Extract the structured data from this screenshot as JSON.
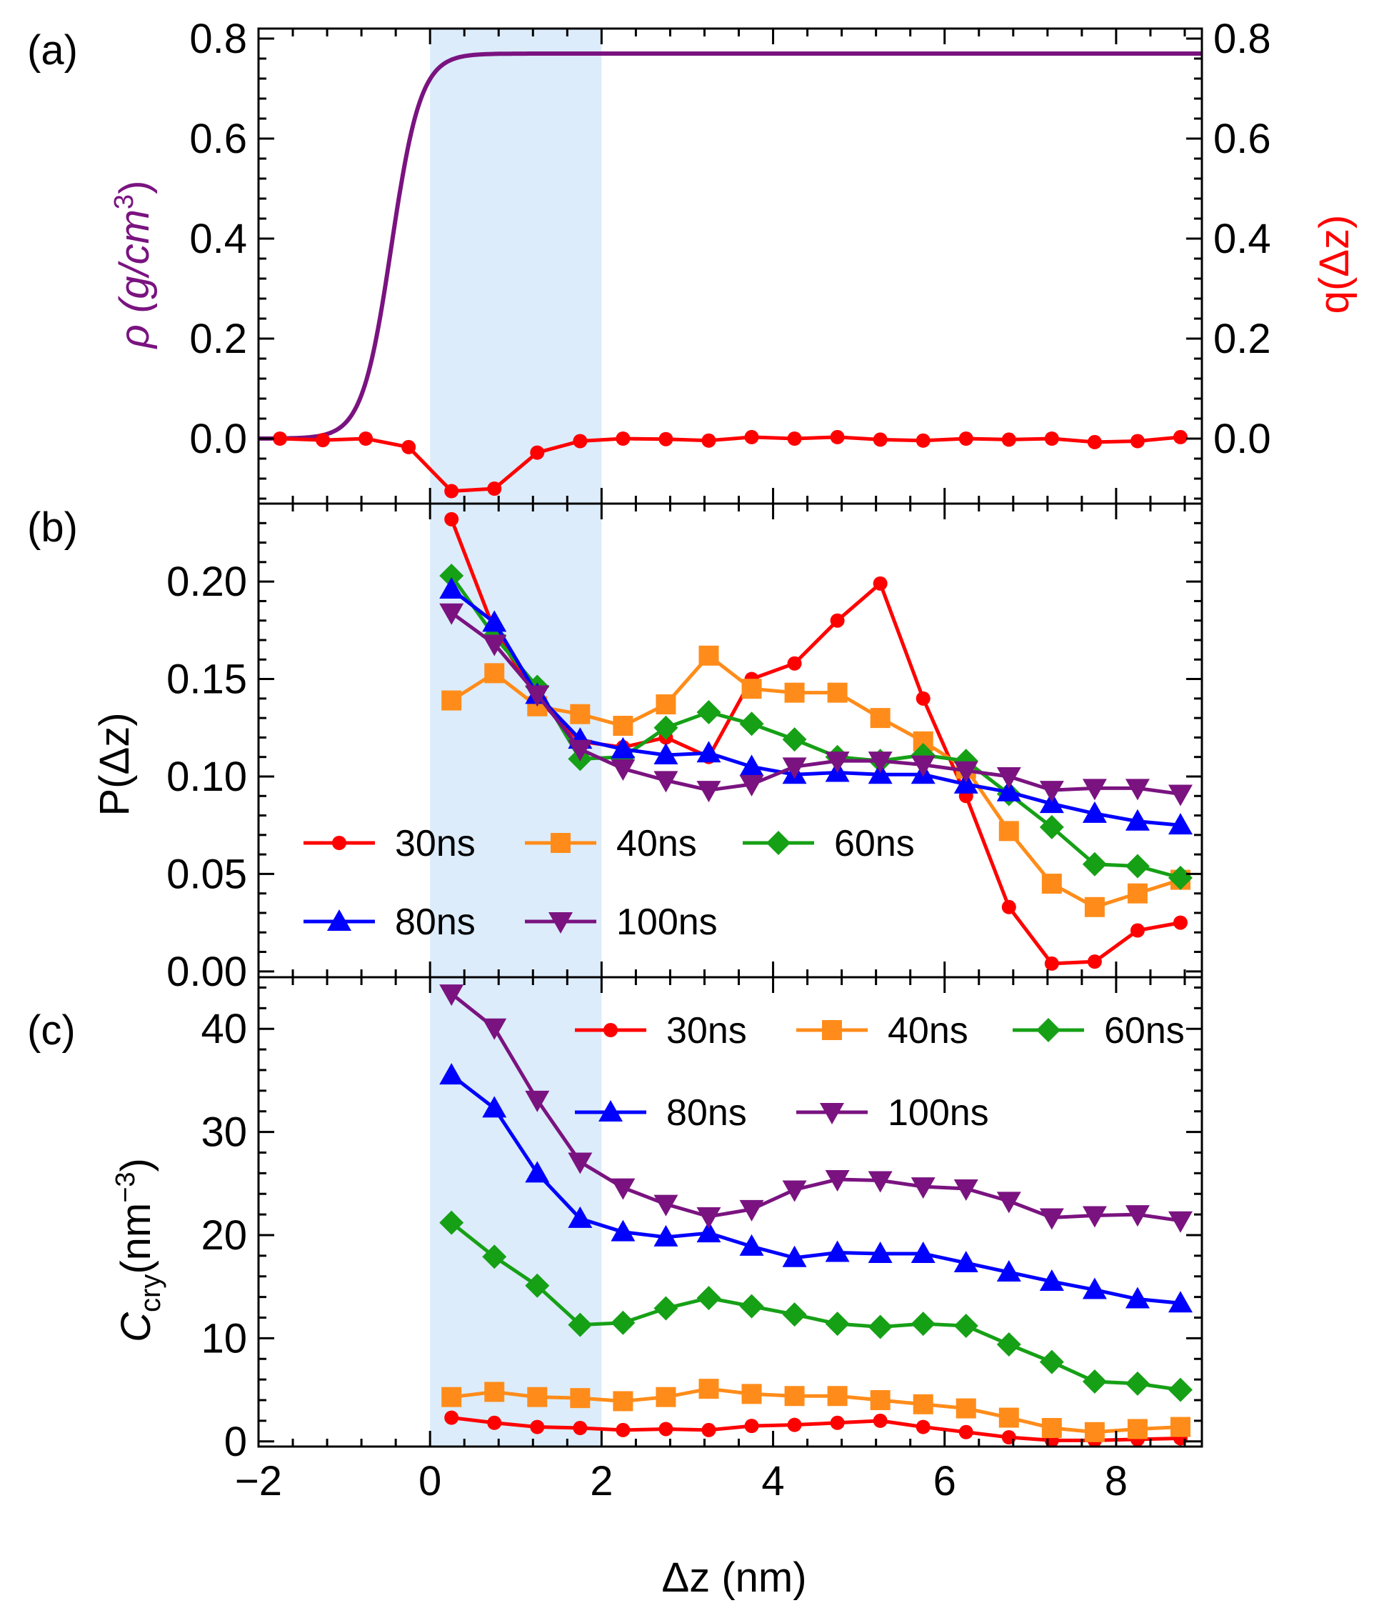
{
  "chart_data": [
    {
      "panel": "a",
      "type": "line",
      "label": "(a)",
      "ylabel_left": "ρ (g/cm",
      "ylabel_left_sup": "3",
      "ylabel_left_close": ")",
      "ylabel_right": "q(Δz)",
      "xlim": [
        -2,
        9
      ],
      "ylim": [
        -0.13,
        0.82
      ],
      "yticks": [
        "0.0",
        "0.2",
        "0.4",
        "0.6",
        "0.8"
      ],
      "yticks_right": [
        "0.0",
        "0.2",
        "0.4",
        "0.6",
        "0.8"
      ],
      "shaded_region_x": [
        0,
        2
      ],
      "series": [
        {
          "name": "density",
          "color": "#7a1380",
          "curve": "sigmoid",
          "x_center": -0.45,
          "width": 0.17,
          "y_max": 0.77
        },
        {
          "name": "q",
          "color": "#ff0000",
          "marker": "circle",
          "x": [
            -1.75,
            -1.25,
            -0.75,
            -0.25,
            0.25,
            0.75,
            1.25,
            1.75,
            2.25,
            2.75,
            3.25,
            3.75,
            4.25,
            4.75,
            5.25,
            5.75,
            6.25,
            6.75,
            7.25,
            7.75,
            8.25,
            8.75
          ],
          "values": [
            0.0,
            -0.003,
            0.0,
            -0.017,
            -0.105,
            -0.1,
            -0.028,
            -0.005,
            0.0,
            -0.001,
            -0.004,
            0.003,
            0.0,
            0.003,
            -0.002,
            -0.004,
            0.0,
            -0.002,
            0.0,
            -0.007,
            -0.005,
            0.003
          ]
        }
      ]
    },
    {
      "panel": "b",
      "type": "line",
      "label": "(b)",
      "ylabel": "P(Δz)",
      "xlim": [
        -2,
        9
      ],
      "ylim": [
        -0.003,
        0.24
      ],
      "yticks": [
        "0.00",
        "0.05",
        "0.10",
        "0.15",
        "0.20"
      ],
      "shaded_region_x": [
        0,
        2
      ],
      "x": [
        0.25,
        0.75,
        1.25,
        1.75,
        2.25,
        2.75,
        3.25,
        3.75,
        4.25,
        4.75,
        5.25,
        5.75,
        6.25,
        6.75,
        7.25,
        7.75,
        8.25,
        8.75
      ],
      "series": [
        {
          "name": "30ns",
          "color": "#ff0000",
          "marker": "circle",
          "values": [
            0.232,
            0.175,
            0.14,
            0.118,
            0.115,
            0.12,
            0.11,
            0.15,
            0.158,
            0.18,
            0.199,
            0.14,
            0.09,
            0.033,
            0.004,
            0.005,
            0.021,
            0.025
          ]
        },
        {
          "name": "40ns",
          "color": "#ff8c1a",
          "marker": "square",
          "values": [
            0.139,
            0.153,
            0.136,
            0.132,
            0.126,
            0.137,
            0.162,
            0.145,
            0.143,
            0.143,
            0.13,
            0.118,
            0.104,
            0.072,
            0.045,
            0.033,
            0.04,
            0.047
          ]
        },
        {
          "name": "60ns",
          "color": "#16a016",
          "marker": "diamond",
          "values": [
            0.203,
            0.172,
            0.146,
            0.109,
            0.11,
            0.125,
            0.133,
            0.127,
            0.119,
            0.11,
            0.108,
            0.111,
            0.108,
            0.091,
            0.074,
            0.055,
            0.054,
            0.048
          ]
        },
        {
          "name": "80ns",
          "color": "#0000ff",
          "marker": "triangle-up",
          "values": [
            0.196,
            0.179,
            0.142,
            0.119,
            0.114,
            0.111,
            0.112,
            0.105,
            0.101,
            0.102,
            0.101,
            0.101,
            0.096,
            0.092,
            0.086,
            0.081,
            0.077,
            0.075
          ]
        },
        {
          "name": "100ns",
          "color": "#7a1380",
          "marker": "triangle-down",
          "values": [
            0.184,
            0.168,
            0.142,
            0.114,
            0.104,
            0.098,
            0.093,
            0.096,
            0.105,
            0.108,
            0.108,
            0.106,
            0.103,
            0.1,
            0.093,
            0.094,
            0.094,
            0.091
          ]
        }
      ],
      "legend": [
        "30ns",
        "40ns",
        "60ns",
        "80ns",
        "100ns"
      ],
      "legend_position": "bottom-left"
    },
    {
      "panel": "c",
      "type": "line",
      "label": "(c)",
      "ylabel_main": "C",
      "ylabel_sub": "cry",
      "ylabel_unit": "(nm",
      "ylabel_sup": "−3",
      "ylabel_close": ")",
      "xlabel": "Δz (nm)",
      "xlim": [
        -2,
        9
      ],
      "ylim": [
        -0.5,
        45
      ],
      "yticks": [
        "0",
        "10",
        "20",
        "30",
        "40"
      ],
      "xticks": [
        "−2",
        "0",
        "2",
        "4",
        "6",
        "8"
      ],
      "shaded_region_x": [
        0,
        2
      ],
      "x": [
        0.25,
        0.75,
        1.25,
        1.75,
        2.25,
        2.75,
        3.25,
        3.75,
        4.25,
        4.75,
        5.25,
        5.75,
        6.25,
        6.75,
        7.25,
        7.75,
        8.25,
        8.75
      ],
      "series": [
        {
          "name": "30ns",
          "color": "#ff0000",
          "marker": "circle",
          "values": [
            2.3,
            1.8,
            1.4,
            1.3,
            1.1,
            1.2,
            1.1,
            1.5,
            1.6,
            1.8,
            2.0,
            1.4,
            0.9,
            0.4,
            0.1,
            0.1,
            0.2,
            0.3
          ]
        },
        {
          "name": "40ns",
          "color": "#ff8c1a",
          "marker": "square",
          "values": [
            4.3,
            4.8,
            4.3,
            4.2,
            3.9,
            4.3,
            5.1,
            4.6,
            4.4,
            4.4,
            4.0,
            3.6,
            3.2,
            2.3,
            1.3,
            0.9,
            1.2,
            1.4
          ]
        },
        {
          "name": "60ns",
          "color": "#16a016",
          "marker": "diamond",
          "values": [
            21.2,
            17.9,
            15.1,
            11.3,
            11.5,
            12.9,
            13.9,
            13.1,
            12.3,
            11.4,
            11.1,
            11.4,
            11.2,
            9.4,
            7.7,
            5.8,
            5.6,
            5.0
          ]
        },
        {
          "name": "80ns",
          "color": "#0000ff",
          "marker": "triangle-up",
          "values": [
            35.5,
            32.3,
            26.0,
            21.6,
            20.3,
            19.8,
            20.2,
            18.9,
            17.8,
            18.3,
            18.2,
            18.2,
            17.3,
            16.4,
            15.5,
            14.7,
            13.8,
            13.4
          ]
        },
        {
          "name": "100ns",
          "color": "#7a1380",
          "marker": "triangle-down",
          "values": [
            43.4,
            40.1,
            33.1,
            27.1,
            24.6,
            23.0,
            21.8,
            22.5,
            24.4,
            25.4,
            25.3,
            24.7,
            24.5,
            23.3,
            21.7,
            21.9,
            22.0,
            21.4
          ]
        }
      ],
      "legend": [
        "30ns",
        "40ns",
        "60ns",
        "80ns",
        "100ns"
      ],
      "legend_position": "top-right"
    }
  ]
}
